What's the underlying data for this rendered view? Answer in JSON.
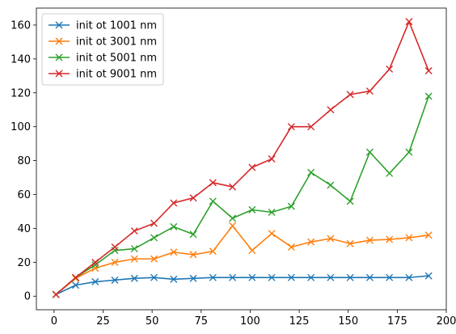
{
  "chart_data": {
    "type": "line",
    "title": "",
    "xlabel": "",
    "ylabel": "",
    "xlim": [
      -9,
      200
    ],
    "ylim": [
      -8,
      170
    ],
    "xticks": [
      0,
      25,
      50,
      75,
      100,
      125,
      150,
      175,
      200
    ],
    "yticks": [
      0,
      20,
      40,
      60,
      80,
      100,
      120,
      140,
      160
    ],
    "grid": false,
    "legend_position": "top-left",
    "marker": "x",
    "x": [
      1,
      11,
      21,
      31,
      41,
      51,
      61,
      71,
      81,
      91,
      101,
      111,
      121,
      131,
      141,
      151,
      161,
      171,
      181,
      191
    ],
    "series": [
      {
        "name": "init ot 1001 nm",
        "color": "#1f77b4",
        "values": [
          1,
          6.5,
          8.5,
          9.5,
          10.5,
          11,
          10,
          10.5,
          11,
          11,
          11,
          11,
          11,
          11,
          11,
          11,
          11,
          11,
          11,
          12
        ]
      },
      {
        "name": "init ot 3001 nm",
        "color": "#ff7f0e",
        "values": [
          1,
          10.5,
          16.5,
          20,
          22,
          22,
          26,
          24.5,
          26.5,
          41.5,
          27,
          37,
          29,
          32,
          34,
          31,
          33,
          33.5,
          34.5,
          36
        ]
      },
      {
        "name": "init ot 5001 nm",
        "color": "#2ca02c",
        "values": [
          1,
          11,
          18.5,
          27,
          28,
          34.5,
          41,
          36.5,
          56,
          46,
          51,
          49.5,
          53,
          73,
          65.5,
          56,
          85,
          72.5,
          85,
          118
        ]
      },
      {
        "name": "init ot 9001 nm",
        "color": "#d62728",
        "values": [
          1,
          11,
          20,
          29,
          38.5,
          43,
          55,
          58,
          67,
          64.5,
          76,
          81,
          100,
          100,
          110,
          119,
          121,
          134,
          162,
          133
        ]
      }
    ]
  }
}
